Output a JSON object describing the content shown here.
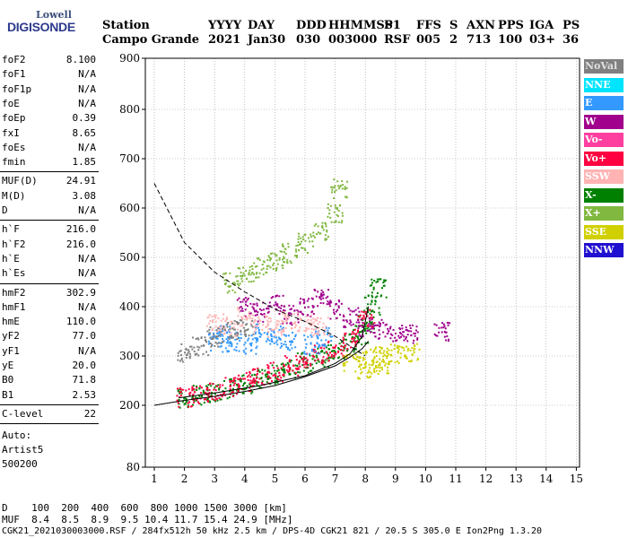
{
  "logo": {
    "line1": "Lowell",
    "line2": "DIGISONDE"
  },
  "header": {
    "row1": [
      "Station",
      "YYYY",
      "DAY",
      "DDD",
      "HHMMSS",
      "P1",
      "FFS",
      "S",
      "AXN",
      "PPS",
      "IGA",
      "PS"
    ],
    "row2": [
      "Campo Grande",
      "2021",
      "Jan30",
      "030",
      "003000",
      "RSF",
      "005",
      "2",
      "713",
      "100",
      "03+",
      "36"
    ]
  },
  "params": {
    "group1": [
      {
        "k": "foF2",
        "v": "8.100"
      },
      {
        "k": "foF1",
        "v": "N/A"
      },
      {
        "k": "foF1p",
        "v": "N/A"
      },
      {
        "k": "foE",
        "v": "N/A"
      },
      {
        "k": "foEp",
        "v": "0.39"
      },
      {
        "k": "fxI",
        "v": "8.65"
      },
      {
        "k": "foEs",
        "v": "N/A"
      },
      {
        "k": "fmin",
        "v": "1.85"
      }
    ],
    "group2": [
      {
        "k": "MUF(D)",
        "v": "24.91"
      },
      {
        "k": "M(D)",
        "v": "3.08"
      },
      {
        "k": "D",
        "v": "N/A"
      }
    ],
    "group3": [
      {
        "k": "h`F",
        "v": "216.0"
      },
      {
        "k": "h`F2",
        "v": "216.0"
      },
      {
        "k": "h`E",
        "v": "N/A"
      },
      {
        "k": "h`Es",
        "v": "N/A"
      }
    ],
    "group4": [
      {
        "k": "hmF2",
        "v": "302.9"
      },
      {
        "k": "hmF1",
        "v": "N/A"
      },
      {
        "k": "hmE",
        "v": "110.0"
      },
      {
        "k": "yF2",
        "v": "77.0"
      },
      {
        "k": "yF1",
        "v": "N/A"
      },
      {
        "k": "yE",
        "v": "20.0"
      },
      {
        "k": "B0",
        "v": "71.8"
      },
      {
        "k": "B1",
        "v": "2.53"
      }
    ],
    "group5": [
      {
        "k": "C-level",
        "v": "22"
      }
    ],
    "autoscaling": [
      "Auto:",
      "Artist5",
      "500200"
    ]
  },
  "legend": [
    {
      "label": "NoVal",
      "color": "#808080"
    },
    {
      "label": "NNE",
      "color": "#00e5ff"
    },
    {
      "label": "E",
      "color": "#3399ff"
    },
    {
      "label": "W",
      "color": "#a0008c"
    },
    {
      "label": "Vo-",
      "color": "#ff3fa0"
    },
    {
      "label": "Vo+",
      "color": "#ff0040"
    },
    {
      "label": "SSW",
      "color": "#ffb3b3"
    },
    {
      "label": "X-",
      "color": "#008000"
    },
    {
      "label": "X+",
      "color": "#80b840"
    },
    {
      "label": "SSE",
      "color": "#d0d000"
    },
    {
      "label": "NNW",
      "color": "#2010d0"
    }
  ],
  "footer": {
    "row_d": "D    100  200  400  600  800 1000 1500 3000 [km]",
    "row_muf": "MUF  8.4  8.5  8.9  9.5 10.4 11.7 15.4 24.9 [MHz]",
    "row_file": "CGK21_2021030003000.RSF / 284fx512h 50 kHz 2.5 km / DPS-4D CGK21 821 / 20.5 S 305.0 E Ion2Png 1.3.20"
  },
  "chart_data": {
    "type": "scatter",
    "title": "",
    "xlabel": "",
    "ylabel": "",
    "xlim": [
      1,
      15
    ],
    "ylim": [
      80,
      900
    ],
    "x_ticks": [
      "1",
      "2",
      "3",
      "4",
      "5",
      "6",
      "7",
      "8",
      "9",
      "10",
      "11",
      "12",
      "13",
      "14",
      "15"
    ],
    "y_ticks": [
      "80",
      "200",
      "300",
      "400",
      "500",
      "600",
      "700",
      "800",
      "900"
    ],
    "grid": true,
    "legend_position": "right",
    "series": [
      {
        "name": "X-",
        "points": [
          [
            2.0,
            215
          ],
          [
            2.5,
            222
          ],
          [
            3.0,
            228
          ],
          [
            3.5,
            235
          ],
          [
            4.0,
            245
          ],
          [
            4.5,
            255
          ],
          [
            5.0,
            265
          ],
          [
            5.5,
            275
          ],
          [
            6.0,
            288
          ],
          [
            6.5,
            300
          ],
          [
            7.0,
            312
          ],
          [
            7.5,
            330
          ],
          [
            7.8,
            345
          ],
          [
            8.0,
            370
          ],
          [
            8.2,
            405
          ],
          [
            8.4,
            440
          ]
        ]
      },
      {
        "name": "Vo+",
        "points": [
          [
            2.0,
            218
          ],
          [
            2.5,
            225
          ],
          [
            3.0,
            232
          ],
          [
            3.5,
            240
          ],
          [
            4.0,
            250
          ],
          [
            4.5,
            260
          ],
          [
            5.0,
            270
          ],
          [
            5.5,
            282
          ],
          [
            6.0,
            294
          ],
          [
            6.5,
            306
          ],
          [
            7.0,
            320
          ],
          [
            7.5,
            336
          ],
          [
            8.0,
            380
          ]
        ]
      },
      {
        "name": "E",
        "points": [
          [
            3.0,
            330
          ],
          [
            3.3,
            345
          ],
          [
            3.6,
            330
          ],
          [
            4.2,
            325
          ],
          [
            4.6,
            350
          ],
          [
            5.0,
            345
          ],
          [
            5.4,
            330
          ],
          [
            6.2,
            325
          ],
          [
            6.6,
            340
          ]
        ]
      },
      {
        "name": "W",
        "points": [
          [
            4.0,
            400
          ],
          [
            4.5,
            390
          ],
          [
            5.0,
            405
          ],
          [
            5.5,
            385
          ],
          [
            6.0,
            400
          ],
          [
            6.5,
            420
          ],
          [
            7.0,
            395
          ],
          [
            7.5,
            380
          ],
          [
            8.0,
            360
          ],
          [
            8.5,
            355
          ],
          [
            9.0,
            350
          ],
          [
            9.5,
            345
          ],
          [
            10.5,
            350
          ]
        ]
      },
      {
        "name": "SSW",
        "points": [
          [
            3.0,
            370
          ],
          [
            3.5,
            360
          ],
          [
            4.0,
            380
          ],
          [
            4.5,
            370
          ],
          [
            5.0,
            360
          ],
          [
            5.5,
            375
          ],
          [
            6.0,
            365
          ],
          [
            6.5,
            360
          ]
        ]
      },
      {
        "name": "SSE",
        "points": [
          [
            7.5,
            290
          ],
          [
            8.0,
            295
          ],
          [
            8.5,
            300
          ],
          [
            9.0,
            305
          ],
          [
            9.5,
            310
          ],
          [
            8.0,
            275
          ],
          [
            8.5,
            285
          ]
        ]
      },
      {
        "name": "X+",
        "points": [
          [
            3.5,
            450
          ],
          [
            4.0,
            465
          ],
          [
            4.5,
            480
          ],
          [
            5.0,
            495
          ],
          [
            5.5,
            510
          ],
          [
            6.0,
            530
          ],
          [
            6.5,
            555
          ],
          [
            7.0,
            590
          ],
          [
            7.1,
            640
          ]
        ]
      },
      {
        "name": "NoVal",
        "points": [
          [
            2.0,
            310
          ],
          [
            2.5,
            320
          ],
          [
            3.0,
            340
          ],
          [
            3.5,
            355
          ],
          [
            4.0,
            360
          ]
        ]
      }
    ],
    "curves": [
      {
        "name": "virtual-height-trace",
        "x": [
          1.0,
          1.5,
          2.0,
          3.0,
          4.0,
          5.0,
          6.0,
          7.0,
          7.5,
          7.9,
          8.1
        ],
        "y": [
          200,
          205,
          210,
          218,
          228,
          240,
          258,
          280,
          298,
          315,
          330
        ]
      },
      {
        "name": "dashed-model",
        "x": [
          1.0,
          2.0,
          3.0,
          4.0,
          5.0,
          6.0,
          7.0,
          7.5,
          8.0
        ],
        "y": [
          650,
          530,
          470,
          430,
          395,
          370,
          340,
          320,
          300
        ]
      },
      {
        "name": "profile",
        "x": [
          1.8,
          3.0,
          4.5,
          6.0,
          7.0,
          7.5,
          7.9,
          8.1
        ],
        "y": [
          215,
          225,
          240,
          260,
          285,
          305,
          340,
          400
        ]
      }
    ]
  }
}
